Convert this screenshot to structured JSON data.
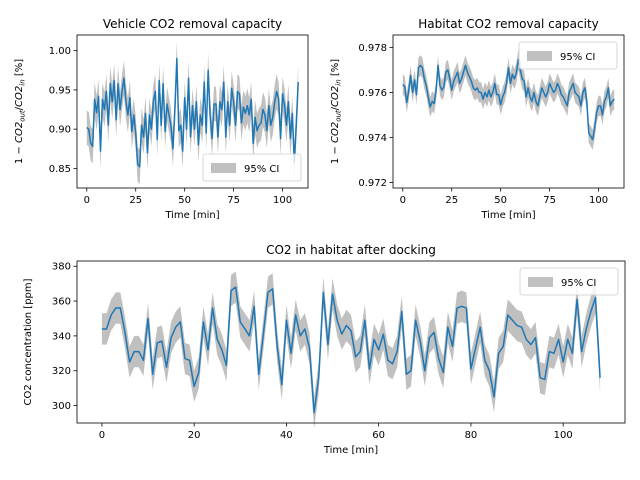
{
  "chart_data": [
    {
      "type": "line",
      "title": "Vehicle CO2 removal capacity",
      "xlabel": "Time [min]",
      "ylabel": "1 − CO2out/CO2in [%]",
      "ylabel_parts": {
        "lead": "1 − ",
        "a": "CO2",
        "a_sub": "out",
        "slash": "/",
        "b": "CO2",
        "b_sub": "in",
        "unit": " [%]"
      },
      "xlim": [
        -5,
        113
      ],
      "ylim": [
        0.825,
        1.02
      ],
      "xticks": [
        0,
        25,
        50,
        75,
        100
      ],
      "xtick_labels": [
        "0",
        "25",
        "50",
        "75",
        "100"
      ],
      "yticks": [
        0.85,
        0.9,
        0.95,
        1.0
      ],
      "ytick_labels": [
        "0.85",
        "0.90",
        "0.95",
        "1.00"
      ],
      "legend": {
        "label": "95% CI",
        "loc": "lower right"
      },
      "line_color": "#1f77b4",
      "band_color": "#c0c0c0",
      "x_start": 0,
      "x_step": 1,
      "y": [
        0.902,
        0.9,
        0.882,
        0.878,
        0.938,
        0.921,
        0.942,
        0.872,
        0.938,
        0.925,
        0.948,
        0.905,
        0.958,
        0.935,
        0.962,
        0.912,
        0.958,
        0.925,
        0.948,
        0.965,
        0.935,
        0.918,
        0.94,
        0.897,
        0.918,
        0.895,
        0.855,
        0.852,
        0.905,
        0.89,
        0.92,
        0.87,
        0.918,
        0.9,
        0.935,
        0.948,
        0.887,
        0.962,
        0.905,
        0.958,
        0.897,
        0.932,
        0.918,
        0.905,
        0.875,
        0.925,
        0.99,
        0.898,
        0.905,
        0.872,
        0.94,
        0.9,
        0.965,
        0.89,
        0.93,
        0.9,
        0.935,
        0.88,
        0.918,
        0.905,
        0.96,
        0.895,
        0.975,
        0.918,
        0.888,
        0.932,
        0.932,
        0.89,
        0.935,
        0.925,
        0.96,
        0.89,
        0.935,
        0.905,
        0.952,
        0.935,
        0.905,
        0.948,
        0.945,
        0.908,
        0.928,
        0.92,
        0.93,
        0.918,
        0.938,
        0.882,
        0.915,
        0.898,
        0.905,
        0.908,
        0.925,
        0.918,
        0.898,
        0.93,
        0.905,
        0.915,
        0.935,
        0.948,
        0.938,
        0.888,
        0.945,
        0.93,
        0.905,
        0.935,
        0.888,
        0.92,
        0.858,
        0.905,
        0.96
      ],
      "band_halfwidth": 0.022
    },
    {
      "type": "line",
      "title": "Habitat CO2 removal capacity",
      "xlabel": "Time [min]",
      "ylabel": "1 − CO2out/CO2in [%]",
      "ylabel_parts": {
        "lead": "1 − ",
        "a": "CO2",
        "a_sub": "out",
        "slash": "/",
        "b": "CO2",
        "b_sub": "in",
        "unit": " [%]"
      },
      "xlim": [
        -5,
        113
      ],
      "ylim": [
        0.97175,
        0.97855
      ],
      "xticks": [
        0,
        25,
        50,
        75,
        100
      ],
      "xtick_labels": [
        "0",
        "25",
        "50",
        "75",
        "100"
      ],
      "yticks": [
        0.972,
        0.974,
        0.976,
        0.978
      ],
      "ytick_labels": [
        "0.972",
        "0.974",
        "0.976",
        "0.978"
      ],
      "legend": {
        "label": "95% CI",
        "loc": "upper right"
      },
      "line_color": "#1f77b4",
      "band_color": "#c0c0c0",
      "x_start": 0,
      "x_step": 1,
      "y": [
        0.97635,
        0.97625,
        0.97555,
        0.97605,
        0.97675,
        0.976,
        0.97655,
        0.9759,
        0.9771,
        0.9772,
        0.9771,
        0.9766,
        0.9763,
        0.9758,
        0.97535,
        0.9756,
        0.9755,
        0.97605,
        0.9772,
        0.9763,
        0.9761,
        0.97625,
        0.9769,
        0.977,
        0.9766,
        0.9761,
        0.9765,
        0.9767,
        0.9769,
        0.9764,
        0.9766,
        0.9769,
        0.9772,
        0.9769,
        0.9767,
        0.9765,
        0.9762,
        0.9761,
        0.9762,
        0.976,
        0.976,
        0.9757,
        0.976,
        0.9758,
        0.9761,
        0.9758,
        0.976,
        0.9764,
        0.9759,
        0.9759,
        0.97545,
        0.9758,
        0.976,
        0.9764,
        0.9771,
        0.9764,
        0.9768,
        0.9766,
        0.97685,
        0.97745,
        0.977,
        0.9766,
        0.9765,
        0.9758,
        0.9762,
        0.9758,
        0.9756,
        0.976,
        0.9756,
        0.9754,
        0.9758,
        0.9762,
        0.976,
        0.9758,
        0.976,
        0.9764,
        0.9762,
        0.976,
        0.9761,
        0.9764,
        0.9762,
        0.9759,
        0.9758,
        0.9756,
        0.9754,
        0.976,
        0.9762,
        0.9764,
        0.976,
        0.9759,
        0.9758,
        0.9754,
        0.976,
        0.9762,
        0.9756,
        0.9742,
        0.97405,
        0.9739,
        0.9744,
        0.9751,
        0.9754,
        0.9754,
        0.975,
        0.9756,
        0.9758,
        0.9762,
        0.9754,
        0.9756,
        0.9757
      ],
      "band_halfwidth": 0.00045
    },
    {
      "type": "line",
      "title": "CO2 in habitat after docking",
      "xlabel": "Time [min]",
      "ylabel": "CO2 concentration [ppm]",
      "xlim": [
        -5.4,
        113.4
      ],
      "ylim": [
        290,
        383
      ],
      "xticks": [
        0,
        20,
        40,
        60,
        80,
        100
      ],
      "xtick_labels": [
        "0",
        "20",
        "40",
        "60",
        "80",
        "100"
      ],
      "yticks": [
        300,
        320,
        340,
        360,
        380
      ],
      "ytick_labels": [
        "300",
        "320",
        "340",
        "360",
        "380"
      ],
      "legend": {
        "label": "95% CI",
        "loc": "upper right"
      },
      "line_color": "#1f77b4",
      "band_color": "#c0c0c0",
      "x_start": 0,
      "x_step": 1,
      "y": [
        344,
        344,
        352,
        356,
        356,
        342,
        325,
        331,
        331,
        326,
        350,
        318,
        336,
        337,
        322,
        339,
        345,
        348,
        327,
        326,
        311,
        319,
        348,
        332,
        356,
        338,
        332,
        323,
        366,
        368,
        348,
        344,
        340,
        357,
        318,
        341,
        365,
        367,
        334,
        312,
        349,
        330,
        352,
        340,
        344,
        333,
        296,
        316,
        365,
        335,
        364,
        349,
        341,
        346,
        343,
        328,
        331,
        349,
        321,
        338,
        332,
        341,
        326,
        324,
        331,
        354,
        318,
        320,
        349,
        337,
        320,
        339,
        342,
        327,
        319,
        345,
        334,
        356,
        357,
        356,
        321,
        333,
        345,
        326,
        320,
        305,
        330,
        334,
        352,
        349,
        346,
        345,
        338,
        335,
        339,
        316,
        315,
        331,
        330,
        338,
        325,
        338,
        330,
        361,
        331,
        344,
        354,
        362,
        316
      ],
      "band_halfwidth": 9
    }
  ]
}
